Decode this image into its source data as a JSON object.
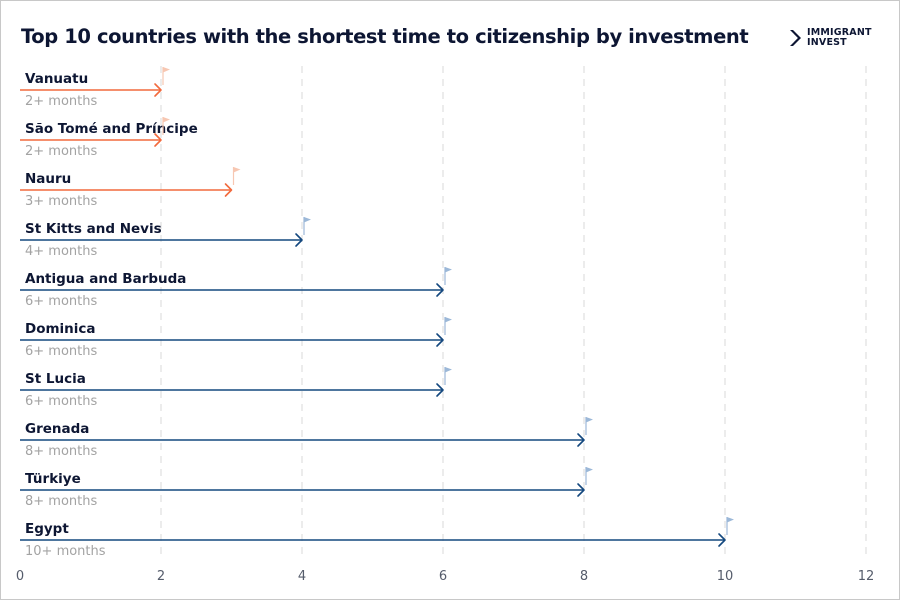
{
  "title": "Top 10 countries with the shortest time to citizenship by investment",
  "logo": {
    "line1": "IMMIGRANT",
    "line2": "INVEST",
    "icon": "chevron-arrows-icon"
  },
  "colors": {
    "fast": "#f26a3d",
    "standard": "#14487f",
    "fast_flag": "#f7c7b2",
    "standard_flag": "#9cb8d8",
    "grid": "#d9d9d9",
    "country_text": "#0d1633",
    "duration_text": "#a3a3a3"
  },
  "chart_data": {
    "type": "bar",
    "orientation": "horizontal",
    "categories": [
      "Vanuatu",
      "São Tomé and Príncipe",
      "Nauru",
      "St Kitts and Nevis",
      "Antigua and Barbuda",
      "Dominica",
      "St Lucia",
      "Grenada",
      "Türkiye",
      "Egypt"
    ],
    "values": [
      2,
      2,
      3,
      4,
      6,
      6,
      6,
      8,
      8,
      10
    ],
    "value_labels": [
      "2+ months",
      "2+ months",
      "3+ months",
      "4+ months",
      "6+ months",
      "6+ months",
      "6+ months",
      "8+ months",
      "8+ months",
      "10+ months"
    ],
    "highlight": [
      true,
      true,
      true,
      false,
      false,
      false,
      false,
      false,
      false,
      false
    ],
    "x_ticks": [
      "0",
      "2",
      "4",
      "6",
      "8",
      "10",
      "12"
    ],
    "xlim": [
      0,
      12
    ],
    "grid": "vertical dashed",
    "xlabel": "",
    "ylabel": ""
  }
}
